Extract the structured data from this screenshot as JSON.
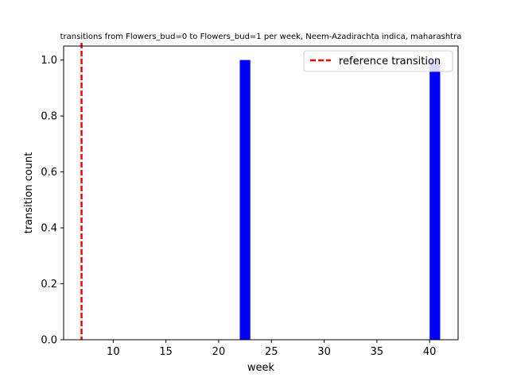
{
  "chart_data": {
    "type": "bar",
    "title": "transitions from Flowers_bud=0 to Flowers_bud=1 per week, Neem-Azadirachta indica, maharashtra",
    "xlabel": "week",
    "ylabel": "transition count",
    "xlim": [
      5.3,
      42.7
    ],
    "ylim": [
      0,
      1.05
    ],
    "xticks": [
      10,
      15,
      20,
      25,
      30,
      35,
      40
    ],
    "yticks": [
      0.0,
      0.2,
      0.4,
      0.6,
      0.8,
      1.0
    ],
    "xtick_labels": [
      "10",
      "15",
      "20",
      "25",
      "30",
      "35",
      "40"
    ],
    "ytick_labels": [
      "0.0",
      "0.2",
      "0.4",
      "0.6",
      "0.8",
      "1.0"
    ],
    "bar_width": 1,
    "bar_color": "#0000ff",
    "bars": [
      {
        "x": 22,
        "value": 1
      },
      {
        "x": 40,
        "value": 1
      }
    ],
    "reference_line": {
      "x": 7,
      "color": "#ff0000",
      "style": "dashed"
    },
    "legend": {
      "placement": "top-right",
      "entries": [
        {
          "label": "reference transition",
          "color": "#ff0000",
          "style": "dashed"
        }
      ]
    },
    "grid": false
  }
}
